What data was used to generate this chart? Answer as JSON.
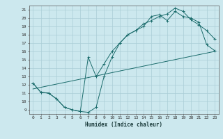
{
  "xlabel": "Humidex (Indice chaleur)",
  "bg_color": "#cce8ee",
  "grid_color": "#aacdd6",
  "line_color": "#1a6b6b",
  "xlim": [
    -0.5,
    23.5
  ],
  "ylim": [
    8.5,
    21.5
  ],
  "xticks": [
    0,
    1,
    2,
    3,
    4,
    5,
    6,
    7,
    8,
    9,
    10,
    11,
    12,
    13,
    14,
    15,
    16,
    17,
    18,
    19,
    20,
    21,
    22,
    23
  ],
  "yticks": [
    9,
    10,
    11,
    12,
    13,
    14,
    15,
    16,
    17,
    18,
    19,
    20,
    21
  ],
  "curve1_x": [
    0,
    1,
    2,
    3,
    4,
    5,
    6,
    7,
    8,
    9,
    10,
    11,
    12,
    13,
    14,
    15,
    16,
    17,
    18,
    19,
    20,
    21,
    22,
    23
  ],
  "curve1_y": [
    12.2,
    11.1,
    11.0,
    10.3,
    9.3,
    9.0,
    8.8,
    8.7,
    9.3,
    13.0,
    15.3,
    17.0,
    18.0,
    18.5,
    19.3,
    19.7,
    20.2,
    20.5,
    21.2,
    20.8,
    19.8,
    19.2,
    18.5,
    17.5
  ],
  "curve2_x": [
    0,
    1,
    2,
    3,
    4,
    5,
    6,
    7,
    8,
    9,
    10,
    11,
    12,
    13,
    14,
    15,
    16,
    17,
    18,
    19,
    20,
    21,
    22,
    23
  ],
  "curve2_y": [
    12.2,
    11.1,
    11.0,
    10.3,
    9.3,
    9.0,
    8.8,
    15.3,
    13.0,
    14.5,
    16.0,
    17.0,
    18.0,
    18.5,
    19.0,
    20.2,
    20.4,
    19.7,
    20.8,
    20.2,
    20.0,
    19.5,
    16.8,
    16.1
  ],
  "curve3_x": [
    0,
    23
  ],
  "curve3_y": [
    11.5,
    16.0
  ]
}
